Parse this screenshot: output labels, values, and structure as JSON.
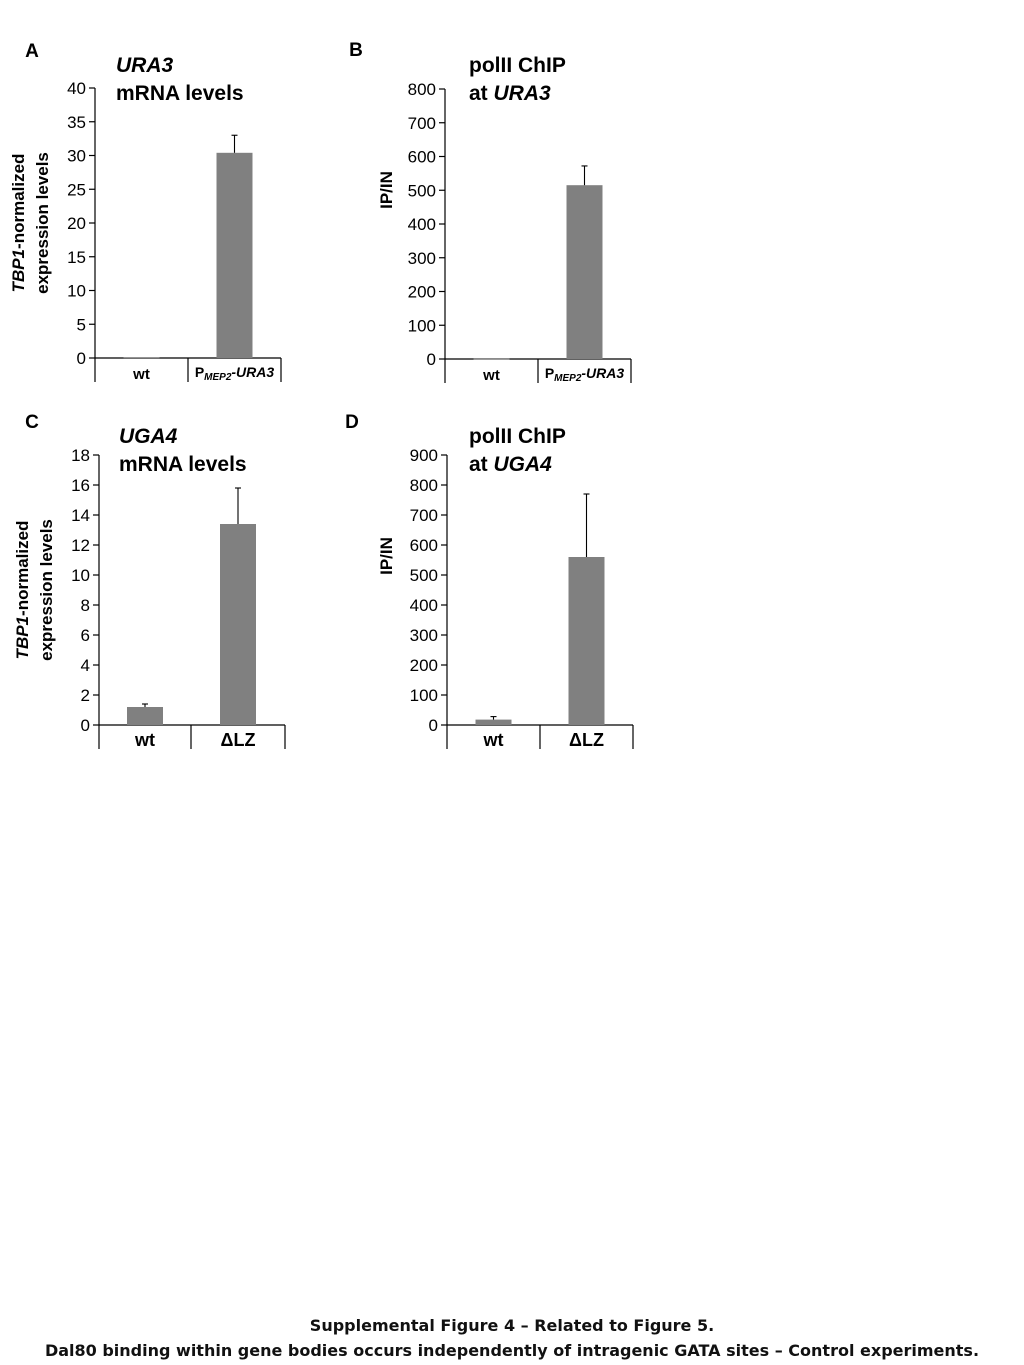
{
  "chart_data": [
    {
      "panel": "A",
      "type": "bar",
      "title": [
        "URA3",
        "mRNA levels"
      ],
      "ylabel": [
        "TBP1-normalized",
        "expression levels"
      ],
      "xlabel": "",
      "categories": [
        "wt",
        "PMEP2-URA3"
      ],
      "values": [
        0.1,
        30.4
      ],
      "errors": [
        0,
        2.6
      ],
      "ylim": [
        0,
        40
      ],
      "yticks": [
        0,
        5,
        10,
        15,
        20,
        25,
        30,
        35,
        40
      ],
      "bar_color": "#808080",
      "grid": false,
      "legend": "none"
    },
    {
      "panel": "B",
      "type": "bar",
      "title": [
        "polII ChIP",
        "at URA3"
      ],
      "ylabel": [
        "IP/IN"
      ],
      "xlabel": "",
      "categories": [
        "wt",
        "PMEP2-URA3"
      ],
      "values": [
        1,
        515
      ],
      "errors": [
        0,
        57
      ],
      "ylim": [
        0,
        800
      ],
      "yticks": [
        0,
        100,
        200,
        300,
        400,
        500,
        600,
        700,
        800
      ],
      "bar_color": "#808080",
      "grid": false,
      "legend": "none"
    },
    {
      "panel": "C",
      "type": "bar",
      "title": [
        "UGA4",
        "mRNA levels"
      ],
      "ylabel": [
        "TBP1-normalized",
        "expression levels"
      ],
      "xlabel": "",
      "categories": [
        "wt",
        "ΔLZ"
      ],
      "values": [
        1.2,
        13.4
      ],
      "errors": [
        0.2,
        2.4
      ],
      "ylim": [
        0,
        18
      ],
      "yticks": [
        0,
        2,
        4,
        6,
        8,
        10,
        12,
        14,
        16,
        18
      ],
      "bar_color": "#808080",
      "grid": false,
      "legend": "none"
    },
    {
      "panel": "D",
      "type": "bar",
      "title": [
        "polII ChIP",
        "at UGA4"
      ],
      "ylabel": [
        "IP/IN"
      ],
      "xlabel": "",
      "categories": [
        "wt",
        "ΔLZ"
      ],
      "values": [
        18,
        560
      ],
      "errors": [
        10,
        210
      ],
      "ylim": [
        0,
        900
      ],
      "yticks": [
        0,
        100,
        200,
        300,
        400,
        500,
        600,
        700,
        800,
        900
      ],
      "bar_color": "#808080",
      "grid": false,
      "legend": "none"
    }
  ],
  "caption": {
    "line1": "Supplemental Figure 4 – Related to Figure 5.",
    "line2": "Dal80 binding within gene bodies occurs independently of intragenic GATA sites – Control experiments."
  }
}
